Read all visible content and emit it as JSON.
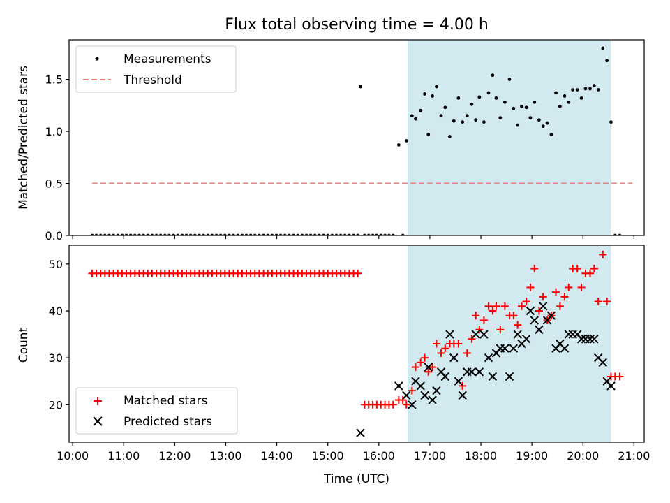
{
  "chart_data": {
    "title": "Flux total observing time = 4.00 h",
    "x_axis": {
      "label": "Time (UTC)",
      "range_hours": [
        9.93,
        21.2
      ],
      "tick_labels": [
        "10:00",
        "11:00",
        "12:00",
        "13:00",
        "14:00",
        "15:00",
        "16:00",
        "17:00",
        "18:00",
        "19:00",
        "20:00",
        "21:00"
      ],
      "tick_values_hours": [
        10,
        11,
        12,
        13,
        14,
        15,
        16,
        17,
        18,
        19,
        20,
        21
      ]
    },
    "observing_window_hours": [
      16.57,
      20.55
    ],
    "observing_window_color": "#d2e9f0",
    "panels": [
      {
        "type": "scatter",
        "ylabel": "Matched/Predicted stars",
        "ylim": [
          0,
          1.88
        ],
        "yticks": [
          0.0,
          0.5,
          1.0,
          1.5
        ],
        "ytick_labels": [
          "0.0",
          "0.5",
          "1.0",
          "1.5"
        ],
        "legend_position": "upper left",
        "series": [
          {
            "name": "Measurements",
            "marker": "dot",
            "color": "#000000",
            "zero_points": {
              "from_hour": 10.38,
              "to_hour": 15.62,
              "step": 0.084,
              "y": 0
            },
            "points": [
              [
                15.64,
                1.43
              ],
              [
                15.72,
                0
              ],
              [
                15.8,
                0
              ],
              [
                15.88,
                0
              ],
              [
                15.96,
                0
              ],
              [
                16.04,
                0
              ],
              [
                16.12,
                0
              ],
              [
                16.2,
                0
              ],
              [
                16.28,
                0
              ],
              [
                16.39,
                0.87
              ],
              [
                16.47,
                0
              ],
              [
                16.54,
                0.91
              ],
              [
                16.65,
                1.15
              ],
              [
                16.72,
                1.12
              ],
              [
                16.82,
                1.2
              ],
              [
                16.9,
                1.36
              ],
              [
                16.97,
                0.97
              ],
              [
                17.05,
                1.34
              ],
              [
                17.13,
                1.43
              ],
              [
                17.22,
                1.15
              ],
              [
                17.3,
                1.23
              ],
              [
                17.39,
                0.95
              ],
              [
                17.47,
                1.1
              ],
              [
                17.56,
                1.32
              ],
              [
                17.64,
                1.09
              ],
              [
                17.73,
                1.15
              ],
              [
                17.82,
                1.26
              ],
              [
                17.9,
                1.11
              ],
              [
                17.97,
                1.33
              ],
              [
                18.06,
                1.09
              ],
              [
                18.15,
                1.37
              ],
              [
                18.23,
                1.54
              ],
              [
                18.3,
                1.32
              ],
              [
                18.38,
                1.13
              ],
              [
                18.47,
                1.28
              ],
              [
                18.56,
                1.5
              ],
              [
                18.64,
                1.22
              ],
              [
                18.72,
                1.06
              ],
              [
                18.8,
                1.24
              ],
              [
                18.89,
                1.23
              ],
              [
                18.97,
                1.13
              ],
              [
                19.05,
                1.28
              ],
              [
                19.14,
                1.11
              ],
              [
                19.22,
                1.05
              ],
              [
                19.3,
                1.08
              ],
              [
                19.38,
                0.97
              ],
              [
                19.47,
                1.37
              ],
              [
                19.55,
                1.24
              ],
              [
                19.64,
                1.34
              ],
              [
                19.72,
                1.28
              ],
              [
                19.8,
                1.4
              ],
              [
                19.89,
                1.4
              ],
              [
                19.97,
                1.32
              ],
              [
                20.05,
                1.41
              ],
              [
                20.14,
                1.41
              ],
              [
                20.22,
                1.44
              ],
              [
                20.3,
                1.4
              ],
              [
                20.39,
                1.8
              ],
              [
                20.47,
                1.68
              ],
              [
                20.55,
                1.09
              ],
              [
                20.63,
                0
              ],
              [
                20.72,
                0
              ]
            ]
          },
          {
            "name": "Threshold",
            "marker": "dashed-line",
            "color": "#f08080",
            "x_range_hours": [
              10.38,
              20.97
            ],
            "y": 0.5
          }
        ]
      },
      {
        "type": "scatter",
        "ylabel": "Count",
        "ylim": [
          12,
          54
        ],
        "yticks": [
          20,
          30,
          40,
          50
        ],
        "ytick_labels": [
          "20",
          "30",
          "40",
          "50"
        ],
        "legend_position": "lower left",
        "series": [
          {
            "name": "Matched stars",
            "marker": "plus",
            "color": "#ff0000",
            "constant_segment": {
              "from_hour": 10.38,
              "to_hour": 15.62,
              "step": 0.084,
              "y": 48
            },
            "points": [
              [
                15.72,
                20
              ],
              [
                15.8,
                20
              ],
              [
                15.88,
                20
              ],
              [
                15.96,
                20
              ],
              [
                16.04,
                20
              ],
              [
                16.12,
                20
              ],
              [
                16.2,
                20
              ],
              [
                16.28,
                20
              ],
              [
                16.39,
                21
              ],
              [
                16.47,
                21
              ],
              [
                16.54,
                20
              ],
              [
                16.65,
                23
              ],
              [
                16.72,
                28
              ],
              [
                16.82,
                29
              ],
              [
                16.9,
                30
              ],
              [
                16.97,
                27
              ],
              [
                17.05,
                28
              ],
              [
                17.13,
                33
              ],
              [
                17.22,
                31
              ],
              [
                17.3,
                32
              ],
              [
                17.39,
                33
              ],
              [
                17.47,
                33
              ],
              [
                17.56,
                33
              ],
              [
                17.64,
                24
              ],
              [
                17.73,
                31
              ],
              [
                17.82,
                34
              ],
              [
                17.9,
                39
              ],
              [
                17.97,
                36
              ],
              [
                18.06,
                38
              ],
              [
                18.15,
                41
              ],
              [
                18.23,
                40
              ],
              [
                18.3,
                41
              ],
              [
                18.38,
                36
              ],
              [
                18.47,
                41
              ],
              [
                18.56,
                39
              ],
              [
                18.64,
                39
              ],
              [
                18.72,
                37
              ],
              [
                18.8,
                41
              ],
              [
                18.89,
                42
              ],
              [
                18.97,
                45
              ],
              [
                19.05,
                49
              ],
              [
                19.14,
                40
              ],
              [
                19.22,
                43
              ],
              [
                19.3,
                38
              ],
              [
                19.38,
                39
              ],
              [
                19.47,
                44
              ],
              [
                19.55,
                41
              ],
              [
                19.64,
                43
              ],
              [
                19.72,
                45
              ],
              [
                19.8,
                49
              ],
              [
                19.89,
                49
              ],
              [
                19.97,
                45
              ],
              [
                20.05,
                48
              ],
              [
                20.14,
                48
              ],
              [
                20.22,
                49
              ],
              [
                20.3,
                42
              ],
              [
                20.39,
                52
              ],
              [
                20.47,
                42
              ],
              [
                20.55,
                26
              ],
              [
                20.63,
                26
              ],
              [
                20.72,
                26
              ]
            ]
          },
          {
            "name": "Predicted stars",
            "marker": "x",
            "color": "#000000",
            "points": [
              [
                15.64,
                14
              ],
              [
                16.39,
                24
              ],
              [
                16.54,
                22
              ],
              [
                16.65,
                20
              ],
              [
                16.72,
                25
              ],
              [
                16.82,
                24
              ],
              [
                16.9,
                22
              ],
              [
                16.97,
                28
              ],
              [
                17.05,
                21
              ],
              [
                17.13,
                23
              ],
              [
                17.22,
                27
              ],
              [
                17.3,
                26
              ],
              [
                17.39,
                35
              ],
              [
                17.47,
                30
              ],
              [
                17.56,
                25
              ],
              [
                17.64,
                22
              ],
              [
                17.73,
                27
              ],
              [
                17.82,
                27
              ],
              [
                17.9,
                35
              ],
              [
                17.97,
                27
              ],
              [
                18.06,
                35
              ],
              [
                18.15,
                30
              ],
              [
                18.23,
                26
              ],
              [
                18.3,
                31
              ],
              [
                18.38,
                32
              ],
              [
                18.47,
                32
              ],
              [
                18.56,
                26
              ],
              [
                18.64,
                32
              ],
              [
                18.72,
                35
              ],
              [
                18.8,
                33
              ],
              [
                18.89,
                34
              ],
              [
                18.97,
                40
              ],
              [
                19.05,
                38
              ],
              [
                19.14,
                36
              ],
              [
                19.22,
                41
              ],
              [
                19.3,
                38
              ],
              [
                19.38,
                39
              ],
              [
                19.47,
                32
              ],
              [
                19.55,
                33
              ],
              [
                19.64,
                32
              ],
              [
                19.72,
                35
              ],
              [
                19.8,
                35
              ],
              [
                19.89,
                35
              ],
              [
                19.97,
                34
              ],
              [
                20.05,
                34
              ],
              [
                20.14,
                34
              ],
              [
                20.22,
                34
              ],
              [
                20.3,
                30
              ],
              [
                20.39,
                29
              ],
              [
                20.47,
                25
              ],
              [
                20.55,
                24
              ]
            ]
          }
        ]
      }
    ]
  }
}
